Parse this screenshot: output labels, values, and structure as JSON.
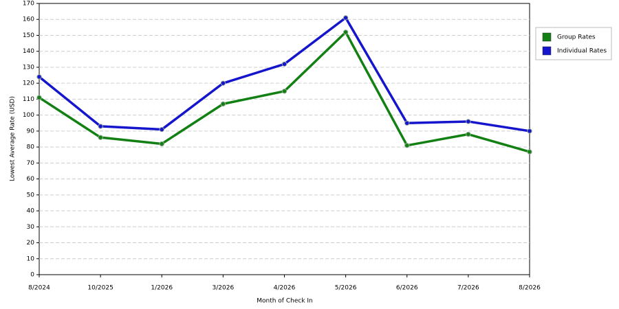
{
  "chart_data": {
    "type": "line",
    "x_label": "Month of Check In",
    "y_label": "Lowest Average Rate (USD)",
    "categories": [
      "8/2024",
      "10/2025",
      "1/2026",
      "3/2026",
      "4/2026",
      "5/2026",
      "6/2026",
      "7/2026",
      "8/2026"
    ],
    "series": [
      {
        "name": "Group Rates",
        "color": "#138013",
        "values": [
          111,
          86,
          82,
          107,
          115,
          152,
          81,
          88,
          77
        ]
      },
      {
        "name": "Individual Rates",
        "color": "#1515cc",
        "values": [
          124,
          93,
          91,
          120,
          132,
          161,
          95,
          96,
          90
        ]
      }
    ],
    "ylim": [
      0,
      170
    ],
    "yticks": [
      0,
      10,
      20,
      30,
      40,
      50,
      60,
      70,
      80,
      90,
      100,
      110,
      120,
      130,
      140,
      150,
      160,
      170
    ],
    "grid": true,
    "legend": "right"
  }
}
